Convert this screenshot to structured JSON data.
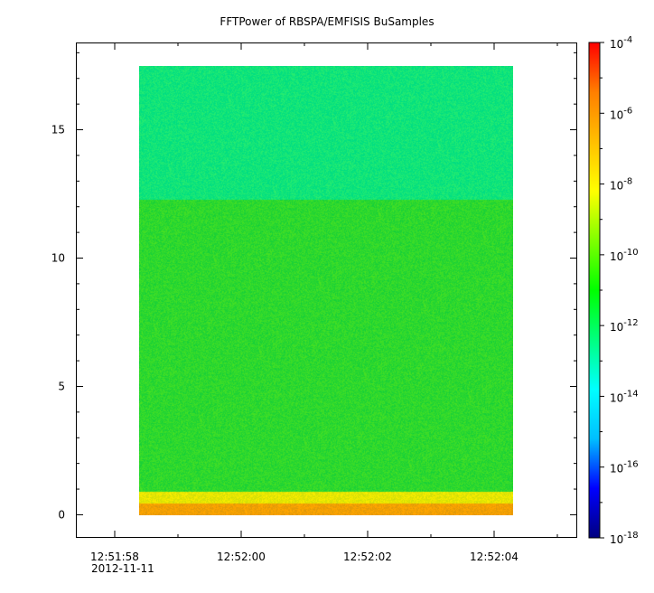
{
  "title": "FFTPower of RBSPA/EMFISIS  BuSamples",
  "chart_data": {
    "type": "heatmap",
    "title": "FFTPower of RBSPA/EMFISIS  BuSamples",
    "xlabel": "",
    "ylabel": "",
    "x_range": [
      "12:51:58.5",
      "12:52:04.3"
    ],
    "x_axis": {
      "ticks": [
        "12:51:58",
        "12:52:00",
        "12:52:02",
        "12:52:04"
      ],
      "tick_values_sec": [
        58,
        60,
        62,
        64
      ],
      "date_label": "2012-11-11",
      "minor_ticks_sec": [
        59,
        61,
        63,
        65
      ]
    },
    "y_axis": {
      "ticks": [
        "0",
        "5",
        "10",
        "15"
      ],
      "tick_values": [
        0,
        5,
        10,
        15
      ],
      "ylim": [
        -0.9,
        18.4
      ]
    },
    "data_extent": {
      "y": [
        0,
        17.5
      ],
      "x_sec": [
        58.5,
        64.3
      ]
    },
    "colorbar": {
      "scale": "log",
      "range": [
        1e-18,
        0.0001
      ],
      "tick_labels": [
        "10-4",
        "10-6",
        "10-8",
        "10-10",
        "10-12",
        "10-14",
        "10-16",
        "10-18"
      ],
      "tick_bases": [
        "10",
        "10",
        "10",
        "10",
        "10",
        "10",
        "10",
        "10"
      ],
      "tick_exponents": [
        "-4",
        "-6",
        "-8",
        "-10",
        "-12",
        "-14",
        "-16",
        "-18"
      ],
      "colormap": [
        "#00007f",
        "#0000ff",
        "#00bfff",
        "#00ffff",
        "#00ff7f",
        "#00ff00",
        "#7fff00",
        "#ffff00",
        "#ffbf00",
        "#ff7f00",
        "#ff0000"
      ]
    },
    "power_bands_log10": [
      {
        "y": [
          0,
          0.45
        ],
        "log10_power": -8.7,
        "color": "#f5a000"
      },
      {
        "y": [
          0.45,
          0.9
        ],
        "log10_power": -9.1,
        "color": "#e6e600"
      },
      {
        "y": [
          0.9,
          12.3
        ],
        "log10_power": -10.6,
        "color": "#2ed82e"
      },
      {
        "y": [
          12.3,
          17.5
        ],
        "log10_power": -11.7,
        "color": "#10e47a"
      }
    ]
  }
}
